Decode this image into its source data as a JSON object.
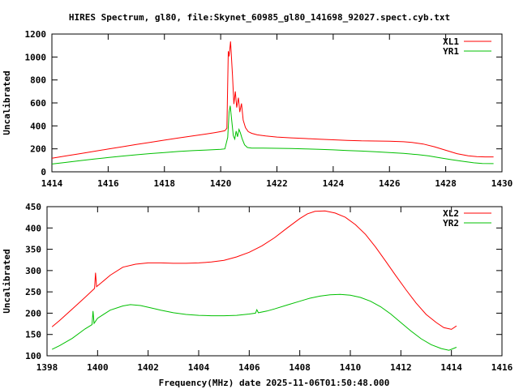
{
  "title": "HIRES Spectrum, gl80, file:Skynet_60985_gl80_141698_92027.spect.cyb.txt",
  "colors": {
    "background": "#ffffff",
    "axis": "#000000",
    "red": "#ff0000",
    "green": "#00c000"
  },
  "chart_data": [
    {
      "type": "line",
      "panel": "top",
      "ylabel": "Uncalibrated",
      "xlim": [
        1414,
        1430
      ],
      "ylim": [
        0,
        1200
      ],
      "xticks": [
        1414,
        1416,
        1418,
        1420,
        1422,
        1424,
        1426,
        1428,
        1430
      ],
      "yticks": [
        0,
        200,
        400,
        600,
        800,
        1000,
        1200
      ],
      "grid": false,
      "legend_position": "top-right-inside",
      "series": [
        {
          "name": "XL1",
          "color": "#ff0000",
          "points": [
            [
              1414.0,
              118
            ],
            [
              1414.5,
              138
            ],
            [
              1415.0,
              158
            ],
            [
              1415.5,
              178
            ],
            [
              1416.0,
              198
            ],
            [
              1416.5,
              218
            ],
            [
              1417.0,
              238
            ],
            [
              1417.5,
              257
            ],
            [
              1418.0,
              276
            ],
            [
              1418.5,
              294
            ],
            [
              1419.0,
              312
            ],
            [
              1419.5,
              330
            ],
            [
              1419.8,
              342
            ],
            [
              1420.0,
              350
            ],
            [
              1420.15,
              358
            ],
            [
              1420.22,
              380
            ],
            [
              1420.27,
              1050
            ],
            [
              1420.3,
              1005
            ],
            [
              1420.35,
              1135
            ],
            [
              1420.42,
              840
            ],
            [
              1420.47,
              590
            ],
            [
              1420.52,
              700
            ],
            [
              1420.57,
              560
            ],
            [
              1420.63,
              645
            ],
            [
              1420.68,
              520
            ],
            [
              1420.74,
              595
            ],
            [
              1420.8,
              450
            ],
            [
              1420.88,
              385
            ],
            [
              1420.98,
              350
            ],
            [
              1421.1,
              335
            ],
            [
              1421.3,
              322
            ],
            [
              1421.6,
              312
            ],
            [
              1422.0,
              303
            ],
            [
              1422.5,
              296
            ],
            [
              1423.0,
              290
            ],
            [
              1423.5,
              284
            ],
            [
              1424.0,
              279
            ],
            [
              1424.5,
              274
            ],
            [
              1425.0,
              270
            ],
            [
              1425.5,
              268
            ],
            [
              1426.0,
              266
            ],
            [
              1426.5,
              262
            ],
            [
              1426.8,
              256
            ],
            [
              1427.2,
              242
            ],
            [
              1427.6,
              218
            ],
            [
              1428.0,
              188
            ],
            [
              1428.4,
              158
            ],
            [
              1428.8,
              140
            ],
            [
              1429.1,
              133
            ],
            [
              1429.4,
              130
            ],
            [
              1429.7,
              130
            ]
          ]
        },
        {
          "name": "YR1",
          "color": "#00c000",
          "points": [
            [
              1414.0,
              68
            ],
            [
              1414.5,
              82
            ],
            [
              1415.0,
              97
            ],
            [
              1415.5,
              111
            ],
            [
              1416.0,
              124
            ],
            [
              1416.5,
              137
            ],
            [
              1417.0,
              148
            ],
            [
              1417.5,
              159
            ],
            [
              1418.0,
              168
            ],
            [
              1418.5,
              177
            ],
            [
              1419.0,
              184
            ],
            [
              1419.5,
              190
            ],
            [
              1420.0,
              196
            ],
            [
              1420.15,
              200
            ],
            [
              1420.25,
              300
            ],
            [
              1420.3,
              520
            ],
            [
              1420.34,
              575
            ],
            [
              1420.4,
              430
            ],
            [
              1420.45,
              315
            ],
            [
              1420.5,
              285
            ],
            [
              1420.55,
              355
            ],
            [
              1420.6,
              305
            ],
            [
              1420.65,
              370
            ],
            [
              1420.7,
              340
            ],
            [
              1420.76,
              290
            ],
            [
              1420.85,
              235
            ],
            [
              1420.95,
              212
            ],
            [
              1421.1,
              207
            ],
            [
              1421.5,
              206
            ],
            [
              1422.0,
              205
            ],
            [
              1422.5,
              203
            ],
            [
              1423.0,
              200
            ],
            [
              1423.5,
              196
            ],
            [
              1424.0,
              191
            ],
            [
              1424.5,
              186
            ],
            [
              1425.0,
              181
            ],
            [
              1425.5,
              175
            ],
            [
              1426.0,
              168
            ],
            [
              1426.5,
              160
            ],
            [
              1427.0,
              150
            ],
            [
              1427.4,
              138
            ],
            [
              1427.8,
              122
            ],
            [
              1428.2,
              106
            ],
            [
              1428.6,
              92
            ],
            [
              1429.0,
              78
            ],
            [
              1429.3,
              72
            ],
            [
              1429.7,
              71
            ]
          ]
        }
      ]
    },
    {
      "type": "line",
      "panel": "bottom",
      "xlabel": "Frequency(MHz) date 2025-11-06T01:50:48.000",
      "ylabel": "Uncalibrated",
      "xlim": [
        1398,
        1416
      ],
      "ylim": [
        100,
        450
      ],
      "xticks": [
        1398,
        1400,
        1402,
        1404,
        1406,
        1408,
        1410,
        1412,
        1414,
        1416
      ],
      "yticks": [
        100,
        150,
        200,
        250,
        300,
        350,
        400,
        450
      ],
      "grid": false,
      "legend_position": "top-right-inside",
      "series": [
        {
          "name": "XL2",
          "color": "#ff0000",
          "points": [
            [
              1398.2,
              168
            ],
            [
              1398.5,
              183
            ],
            [
              1399.0,
              210
            ],
            [
              1399.5,
              237
            ],
            [
              1399.88,
              258
            ],
            [
              1399.92,
              295
            ],
            [
              1399.96,
              262
            ],
            [
              1400.2,
              274
            ],
            [
              1400.5,
              289
            ],
            [
              1401.0,
              308
            ],
            [
              1401.5,
              315
            ],
            [
              1402.0,
              318
            ],
            [
              1402.5,
              318
            ],
            [
              1403.0,
              317
            ],
            [
              1403.5,
              317
            ],
            [
              1404.0,
              318
            ],
            [
              1404.5,
              320
            ],
            [
              1405.0,
              324
            ],
            [
              1405.5,
              332
            ],
            [
              1406.0,
              343
            ],
            [
              1406.5,
              358
            ],
            [
              1407.0,
              377
            ],
            [
              1407.5,
              400
            ],
            [
              1408.0,
              422
            ],
            [
              1408.3,
              433
            ],
            [
              1408.6,
              439
            ],
            [
              1409.0,
              440
            ],
            [
              1409.4,
              435
            ],
            [
              1409.8,
              425
            ],
            [
              1410.2,
              408
            ],
            [
              1410.6,
              385
            ],
            [
              1411.0,
              355
            ],
            [
              1411.4,
              322
            ],
            [
              1411.8,
              288
            ],
            [
              1412.2,
              255
            ],
            [
              1412.6,
              224
            ],
            [
              1413.0,
              197
            ],
            [
              1413.4,
              178
            ],
            [
              1413.7,
              166
            ],
            [
              1414.0,
              162
            ],
            [
              1414.2,
              170
            ]
          ]
        },
        {
          "name": "YR2",
          "color": "#00c000",
          "points": [
            [
              1398.2,
              115
            ],
            [
              1398.5,
              124
            ],
            [
              1399.0,
              141
            ],
            [
              1399.5,
              163
            ],
            [
              1399.78,
              173
            ],
            [
              1399.82,
              205
            ],
            [
              1399.86,
              176
            ],
            [
              1400.0,
              188
            ],
            [
              1400.5,
              207
            ],
            [
              1401.0,
              217
            ],
            [
              1401.3,
              220
            ],
            [
              1401.7,
              218
            ],
            [
              1402.0,
              214
            ],
            [
              1402.5,
              207
            ],
            [
              1403.0,
              201
            ],
            [
              1403.5,
              197
            ],
            [
              1404.0,
              195
            ],
            [
              1404.5,
              194
            ],
            [
              1405.0,
              194
            ],
            [
              1405.5,
              195
            ],
            [
              1406.0,
              198
            ],
            [
              1406.25,
              200
            ],
            [
              1406.3,
              208
            ],
            [
              1406.36,
              201
            ],
            [
              1406.7,
              205
            ],
            [
              1407.0,
              210
            ],
            [
              1407.5,
              219
            ],
            [
              1408.0,
              228
            ],
            [
              1408.4,
              235
            ],
            [
              1408.8,
              240
            ],
            [
              1409.2,
              243
            ],
            [
              1409.6,
              244
            ],
            [
              1410.0,
              242
            ],
            [
              1410.4,
              237
            ],
            [
              1410.8,
              228
            ],
            [
              1411.2,
              215
            ],
            [
              1411.6,
              198
            ],
            [
              1412.0,
              178
            ],
            [
              1412.4,
              158
            ],
            [
              1412.8,
              140
            ],
            [
              1413.2,
              126
            ],
            [
              1413.6,
              117
            ],
            [
              1413.9,
              113
            ],
            [
              1414.2,
              120
            ]
          ]
        }
      ]
    }
  ]
}
